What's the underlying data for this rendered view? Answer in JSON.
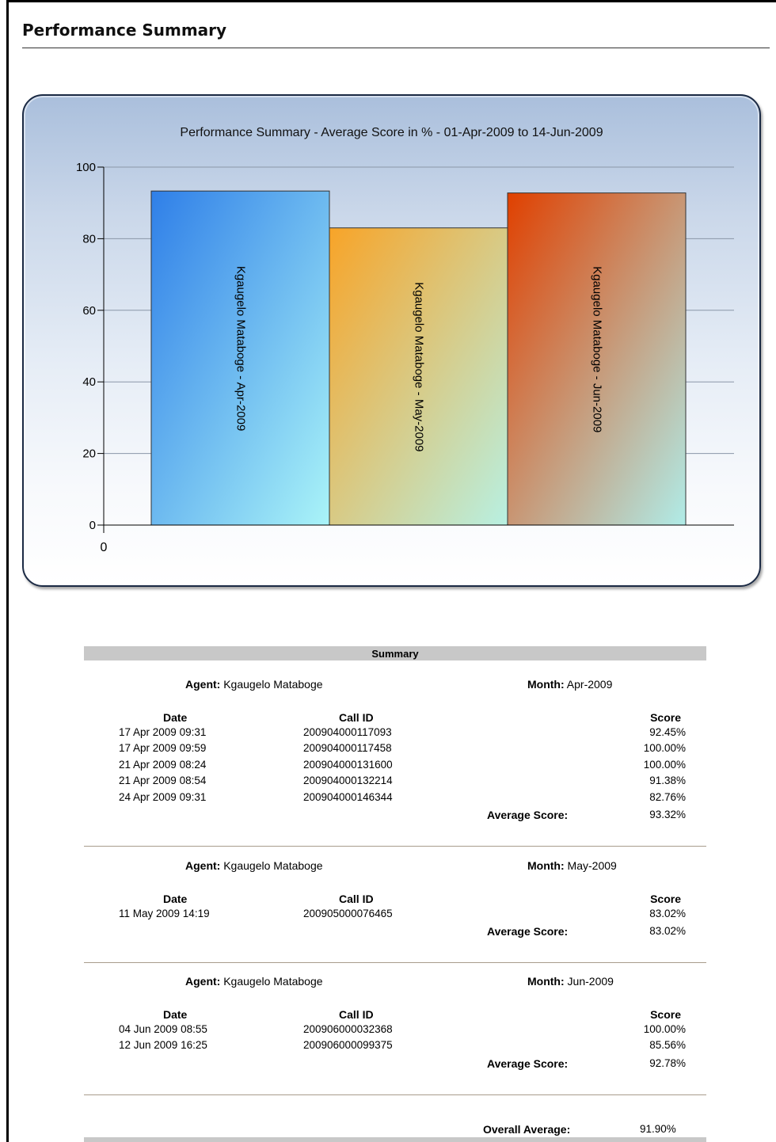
{
  "page": {
    "title": "Performance Summary"
  },
  "chart_data": {
    "type": "bar",
    "title": "Performance Summary - Average Score in % - 01-Apr-2009 to 14-Jun-2009",
    "categories": [
      "Kgaugelo Mataboge - Apr-2009",
      "Kgaugelo Mataboge - May-2009",
      "Kgaugelo Mataboge - Jun-2009"
    ],
    "values": [
      93.32,
      83.02,
      92.78
    ],
    "colors": [
      [
        "#2f7fe8",
        "#aaf4f8"
      ],
      [
        "#f8a428",
        "#b8f0e2"
      ],
      [
        "#e04000",
        "#b0ece8"
      ]
    ],
    "ylim": [
      0,
      100
    ],
    "yticks": [
      "0",
      "20",
      "40",
      "60",
      "80",
      "100"
    ],
    "xtick_label": "0",
    "grid": true
  },
  "summary": {
    "header": "Summary",
    "agent_label": "Agent:",
    "month_label": "Month:",
    "col_date": "Date",
    "col_callid": "Call ID",
    "col_score": "Score",
    "avg_label": "Average Score:",
    "groups": [
      {
        "agent": "Kgaugelo Mataboge",
        "month": "Apr-2009",
        "rows": [
          {
            "date": "17 Apr 2009 09:31",
            "call_id": "200904000117093",
            "score": "92.45%"
          },
          {
            "date": "17 Apr 2009 09:59",
            "call_id": "200904000117458",
            "score": "100.00%"
          },
          {
            "date": "21 Apr 2009 08:24",
            "call_id": "200904000131600",
            "score": "100.00%"
          },
          {
            "date": "21 Apr 2009 08:54",
            "call_id": "200904000132214",
            "score": "91.38%"
          },
          {
            "date": "24 Apr 2009 09:31",
            "call_id": "200904000146344",
            "score": "82.76%"
          }
        ],
        "average": "93.32%"
      },
      {
        "agent": "Kgaugelo Mataboge",
        "month": "May-2009",
        "rows": [
          {
            "date": "11 May 2009 14:19",
            "call_id": "200905000076465",
            "score": "83.02%"
          }
        ],
        "average": "83.02%"
      },
      {
        "agent": "Kgaugelo Mataboge",
        "month": "Jun-2009",
        "rows": [
          {
            "date": "04 Jun 2009 08:55",
            "call_id": "200906000032368",
            "score": "100.00%"
          },
          {
            "date": "12 Jun 2009 16:25",
            "call_id": "200906000099375",
            "score": "85.56%"
          }
        ],
        "average": "92.78%"
      }
    ],
    "overall_label": "Overall Average:",
    "overall_value": "91.90%"
  }
}
